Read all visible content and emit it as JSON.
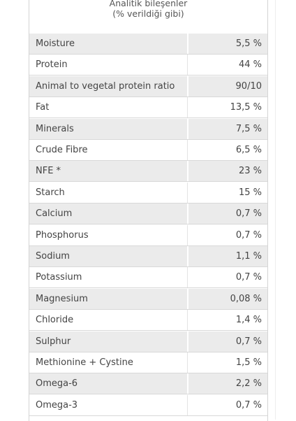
{
  "header": {
    "title": "Analitik bileşenler",
    "subtitle": "(% verildiği gibi)"
  },
  "table": {
    "rows": [
      [
        "Moisture",
        "5,5 %"
      ],
      [
        "Protein",
        "44 %"
      ],
      [
        "Animal to vegetal protein ratio",
        "90/10"
      ],
      [
        "Fat",
        "13,5 %"
      ],
      [
        "Minerals",
        "7,5 %"
      ],
      [
        "Crude Fibre",
        "6,5 %"
      ],
      [
        "NFE *",
        "23 %"
      ],
      [
        "Starch",
        "15 %"
      ],
      [
        "Calcium",
        "0,7 %"
      ],
      [
        "Phosphorus",
        "0,7 %"
      ],
      [
        "Sodium",
        "1,1 %"
      ],
      [
        "Potassium",
        "0,7 %"
      ],
      [
        "Magnesium",
        "0,08 %"
      ],
      [
        "Chloride",
        "1,4 %"
      ],
      [
        "Sulphur",
        "0,7 %"
      ],
      [
        "Methionine + Cystine",
        "1,5 %"
      ],
      [
        "Omega-6",
        "2,2 %"
      ],
      [
        "Omega-3",
        "0,7 %"
      ]
    ]
  }
}
